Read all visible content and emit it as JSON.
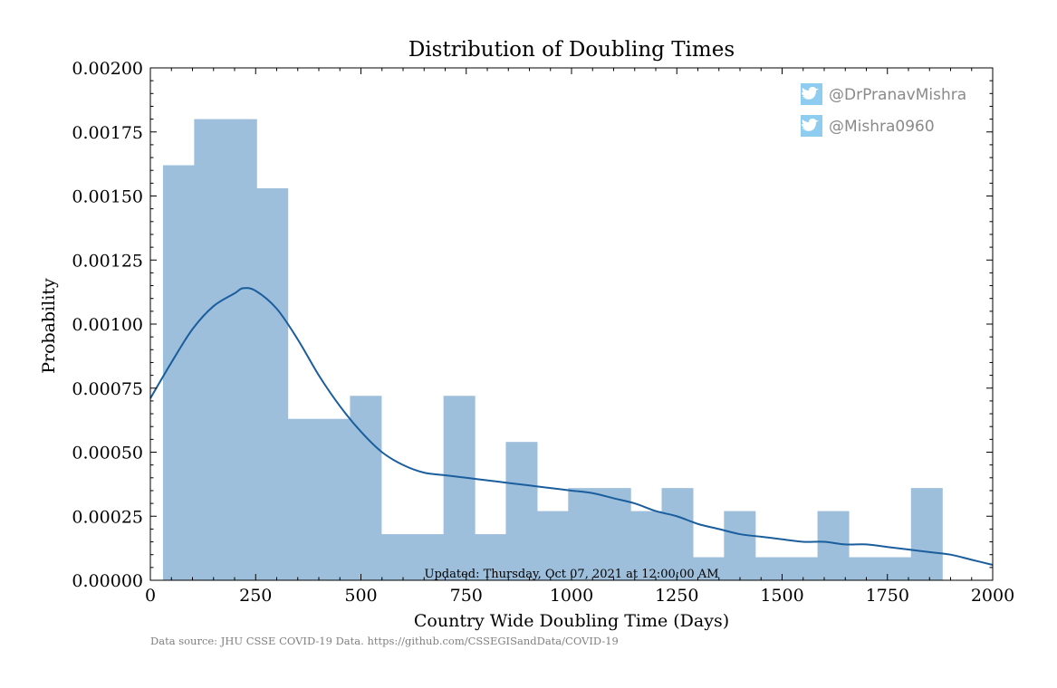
{
  "chart_data": {
    "type": "bar",
    "title": "Distribution of Doubling Times",
    "xlabel": "Country Wide Doubling Time (Days)",
    "ylabel": "Probability",
    "xlim": [
      0,
      2000
    ],
    "ylim": [
      0,
      0.002
    ],
    "x_ticks": [
      "0",
      "250",
      "500",
      "750",
      "1000",
      "1250",
      "1500",
      "1750",
      "2000"
    ],
    "y_ticks": [
      "0.00000",
      "0.00025",
      "0.00050",
      "0.00075",
      "0.00100",
      "0.00125",
      "0.00150",
      "0.00175",
      "0.00200"
    ],
    "histogram": {
      "bin_start": 30,
      "bin_width": 74,
      "values": [
        0.00162,
        0.0018,
        0.0018,
        0.00153,
        0.00063,
        0.00063,
        0.00072,
        0.00018,
        0.00018,
        0.00072,
        0.00018,
        0.00054,
        0.00027,
        0.00036,
        0.00036,
        0.00027,
        0.00036,
        9e-05,
        0.00027,
        9e-05,
        9e-05,
        0.00027,
        9e-05,
        9e-05,
        0.00036
      ],
      "color": "#9ebfdb"
    },
    "kde": {
      "x": [
        0,
        50,
        100,
        150,
        200,
        220,
        250,
        300,
        350,
        400,
        450,
        500,
        550,
        600,
        650,
        700,
        750,
        800,
        850,
        900,
        950,
        1000,
        1050,
        1100,
        1150,
        1200,
        1250,
        1300,
        1350,
        1400,
        1450,
        1500,
        1550,
        1600,
        1650,
        1700,
        1750,
        1800,
        1850,
        1900,
        1950,
        2000
      ],
      "y": [
        0.00071,
        0.00085,
        0.00098,
        0.00107,
        0.00112,
        0.00114,
        0.00113,
        0.00106,
        0.00094,
        0.0008,
        0.00068,
        0.00058,
        0.0005,
        0.00045,
        0.00042,
        0.00041,
        0.0004,
        0.00039,
        0.00038,
        0.00037,
        0.00036,
        0.00035,
        0.00034,
        0.00032,
        0.0003,
        0.00027,
        0.00025,
        0.00022,
        0.0002,
        0.00018,
        0.00017,
        0.00016,
        0.00015,
        0.00015,
        0.00014,
        0.00014,
        0.00013,
        0.00012,
        0.00011,
        0.0001,
        8e-05,
        6e-05
      ],
      "color": "#1a5e9e"
    }
  },
  "annotations": {
    "updated": "Updated: Thursday, Oct 07, 2021 at 12:00:00 AM",
    "source": "Data source: JHU CSSE COVID-19 Data. https://github.com/CSSEGISandData/COVID-19",
    "handles": [
      {
        "icon": "twitter-icon",
        "text": "@DrPranavMishra"
      },
      {
        "icon": "twitter-icon",
        "text": "@Mishra0960"
      }
    ],
    "handle_color": "#8a8a8a",
    "icon_color": "#8ecdf0"
  }
}
